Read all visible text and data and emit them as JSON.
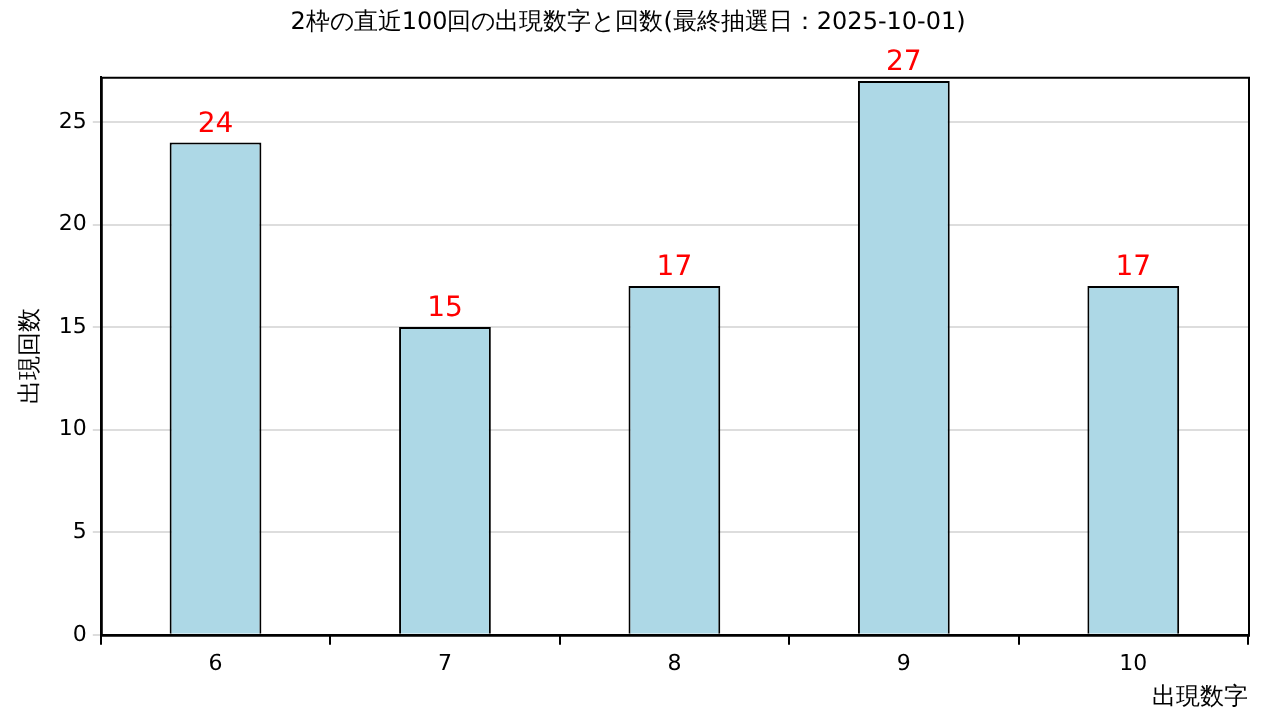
{
  "chart_data": {
    "type": "bar",
    "title": "2枠の直近100回の出現数字と回数(最終抽選日：2025-10-01)",
    "xlabel": "出現数字",
    "ylabel": "出現回数",
    "categories": [
      "6",
      "7",
      "8",
      "9",
      "10"
    ],
    "values": [
      24,
      15,
      17,
      27,
      17
    ],
    "color": "#add8e6",
    "ylim": [
      0,
      27.2
    ],
    "yticks": [
      0,
      5,
      10,
      15,
      20,
      25
    ],
    "grid": "y",
    "data_labels": true
  }
}
